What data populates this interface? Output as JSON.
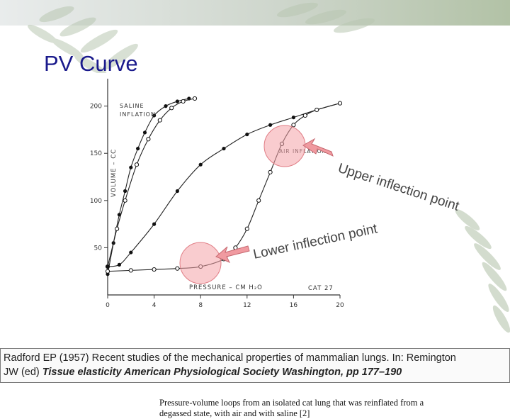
{
  "slide": {
    "title": "PV Curve"
  },
  "figure": {
    "caption": "Pressure-volume loops from an isolated cat lung that was reinflated from a degassed state, with air and with saline [2]",
    "labels": {
      "saline_line1": "SALINE",
      "saline_line2": "INFLATION",
      "air": "AIR INFLATION",
      "pressure_axis": "PRESSURE – CM H₂O",
      "volume_axis": "VOLUME – CC",
      "cat": "CAT 27"
    },
    "annotations": {
      "upper": "Upper inflection point",
      "lower": "Lower inflection point"
    },
    "colors": {
      "highlight": "#f4a3a8",
      "arrow": "#f09aa0",
      "title": "#1a1a8c"
    }
  },
  "chart_data": {
    "type": "line",
    "xlabel": "PRESSURE – CM H2O",
    "ylabel": "VOLUME – CC",
    "xlim": [
      0,
      20
    ],
    "ylim": [
      0,
      220
    ],
    "x_ticks": [
      0,
      4,
      8,
      12,
      16,
      20
    ],
    "y_ticks": [
      50,
      100,
      150,
      200
    ],
    "series": [
      {
        "name": "SALINE INFLATION",
        "marker": "filled",
        "x": [
          0,
          0.5,
          1,
          1.5,
          2,
          2.6,
          3.2,
          4,
          5,
          6,
          7
        ],
        "y": [
          22,
          55,
          85,
          110,
          135,
          155,
          172,
          190,
          200,
          205,
          208
        ]
      },
      {
        "marker": "open",
        "x": [
          7.5,
          6.5,
          5.5,
          4.5,
          3.5,
          2.5,
          1.5,
          0.8,
          0
        ],
        "y": [
          208,
          205,
          198,
          185,
          165,
          138,
          100,
          70,
          30
        ]
      },
      {
        "name": "AIR INFLATION",
        "marker": "filled",
        "x": [
          0,
          1,
          2,
          4,
          6,
          8,
          10,
          12,
          14,
          16,
          18,
          20
        ],
        "y": [
          30,
          32,
          45,
          75,
          110,
          138,
          155,
          170,
          180,
          188,
          196,
          203
        ]
      },
      {
        "marker": "open",
        "x": [
          0,
          2,
          4,
          6,
          8,
          10,
          11,
          12,
          13,
          14,
          15,
          16,
          17,
          18,
          20
        ],
        "y": [
          25,
          26,
          27,
          28,
          30,
          38,
          50,
          70,
          100,
          130,
          160,
          180,
          190,
          196,
          203
        ]
      }
    ]
  },
  "citation": {
    "line1": "Radford EP (1957) Recent studies of the mechanical properties of mammalian lungs. In: Remington",
    "line2_prefix": "JW (ed) ",
    "line2_italic": "Tissue elasticity American Physiological Society Washington, pp 177–190"
  }
}
